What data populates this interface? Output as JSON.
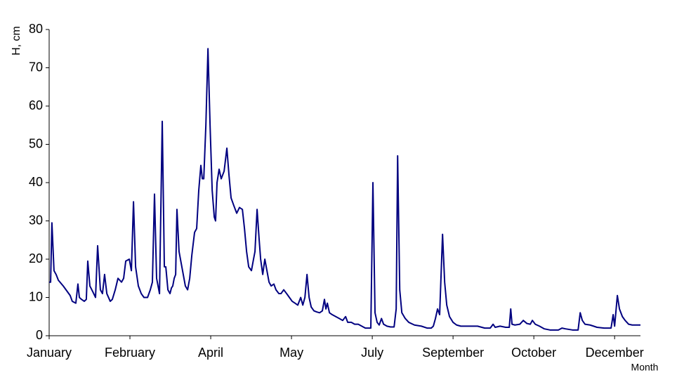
{
  "chart_data": {
    "type": "line",
    "ylabel": "H, cm",
    "xlabel": "Month",
    "xlim": [
      0,
      366
    ],
    "ylim": [
      0,
      80
    ],
    "yticks": [
      0,
      10,
      20,
      30,
      40,
      50,
      60,
      70,
      80
    ],
    "xticks": [
      {
        "value": 0,
        "label": "January"
      },
      {
        "value": 50,
        "label": "February"
      },
      {
        "value": 100,
        "label": "April"
      },
      {
        "value": 150,
        "label": "May"
      },
      {
        "value": 200,
        "label": "July"
      },
      {
        "value": 250,
        "label": "September"
      },
      {
        "value": 300,
        "label": "October"
      },
      {
        "value": 350,
        "label": "December"
      }
    ],
    "series": [
      {
        "color": "#000080",
        "x": [
          0,
          0.9,
          1.7,
          3.0,
          4.3,
          5.7,
          8.7,
          13.0,
          14.3,
          16.5,
          17.8,
          18.7,
          20.0,
          21.7,
          23.0,
          23.9,
          25.2,
          27.0,
          28.7,
          30.0,
          31.7,
          33.0,
          34.3,
          35.7,
          37.8,
          39.1,
          40.9,
          42.6,
          44.8,
          46.1,
          47.4,
          49.6,
          50.9,
          52.2,
          53.5,
          55.2,
          57.0,
          58.7,
          60.9,
          62.6,
          63.9,
          65.2,
          66.5,
          68.3,
          70.0,
          71.3,
          72.2,
          73.5,
          74.8,
          75.7,
          76.5,
          77.4,
          78.3,
          79.1,
          80.4,
          81.7,
          83.0,
          84.3,
          85.7,
          87.0,
          88.3,
          90.0,
          91.3,
          92.6,
          93.9,
          94.8,
          95.7,
          97.0,
          98.3,
          99.6,
          100.9,
          102.2,
          103.0,
          103.9,
          105.2,
          106.5,
          108.3,
          110.0,
          111.3,
          112.6,
          114.3,
          116.1,
          117.8,
          119.6,
          120.9,
          122.2,
          123.5,
          125.2,
          126.5,
          127.4,
          128.7,
          130.0,
          130.9,
          132.2,
          133.5,
          134.8,
          136.1,
          137.4,
          139.1,
          140.4,
          142.2,
          143.5,
          145.2,
          147.0,
          148.7,
          150.4,
          152.2,
          153.9,
          155.7,
          157.0,
          158.3,
          159.6,
          160.9,
          162.2,
          163.9,
          165.7,
          167.4,
          169.1,
          170.4,
          171.3,
          172.2,
          173.5,
          175.2,
          177.4,
          179.6,
          181.7,
          183.5,
          184.8,
          187.0,
          189.1,
          191.3,
          193.5,
          195.7,
          199.1,
          200.4,
          201.7,
          203.0,
          204.3,
          205.7,
          207.0,
          209.1,
          211.3,
          213.5,
          214.8,
          215.7,
          217.0,
          218.3,
          220.4,
          222.6,
          226.1,
          230.4,
          233.9,
          236.5,
          237.8,
          239.1,
          240.4,
          241.7,
          243.5,
          244.8,
          246.1,
          247.8,
          250.0,
          252.2,
          254.8,
          258.7,
          265.2,
          269.6,
          273.0,
          274.8,
          276.1,
          279.1,
          282.6,
          284.8,
          285.7,
          286.5,
          288.3,
          291.3,
          293.5,
          295.7,
          297.8,
          299.1,
          300.9,
          303.5,
          306.5,
          310.0,
          315.2,
          317.4,
          319.6,
          323.9,
          327.4,
          328.7,
          330.0,
          331.7,
          334.8,
          337.0,
          339.1,
          343.5,
          347.8,
          349.1,
          350.0,
          351.7,
          353.0,
          354.8,
          356.5,
          358.7,
          360.9,
          366
        ],
        "values": [
          14,
          14,
          29.5,
          17,
          16,
          14.5,
          13,
          10.5,
          9,
          8.5,
          13.5,
          10,
          9.5,
          9,
          9.5,
          19.5,
          13,
          11.5,
          10,
          23.5,
          12,
          11,
          16,
          11,
          9,
          9.5,
          12,
          15,
          14,
          15,
          19.5,
          20,
          17,
          35,
          18,
          13,
          11,
          10,
          10,
          12,
          14,
          37,
          15,
          11,
          56,
          18,
          18,
          12,
          11,
          12.5,
          13,
          15,
          16,
          33,
          22,
          19,
          16,
          13,
          12,
          15,
          21,
          27,
          28,
          38,
          44.5,
          41,
          41,
          55,
          75,
          55,
          38,
          31,
          30,
          40,
          43.5,
          41,
          43,
          49,
          42,
          36,
          34,
          32,
          33.5,
          33,
          28,
          22,
          18,
          17,
          20,
          22,
          33,
          25,
          20,
          16,
          20,
          17,
          14,
          13,
          13.5,
          12,
          11,
          11,
          12,
          11,
          10,
          9,
          8.5,
          8,
          10,
          8,
          10,
          16,
          10,
          7.5,
          6.5,
          6.2,
          6,
          6.5,
          9.5,
          7,
          8.5,
          6,
          5.5,
          5,
          4.5,
          4,
          5,
          3.5,
          3.5,
          3,
          3,
          2.5,
          2,
          2,
          40,
          6,
          3.5,
          2.8,
          4.5,
          3,
          2.5,
          2.3,
          2.3,
          7,
          47,
          12,
          6,
          4.5,
          3.5,
          2.8,
          2.5,
          2,
          2,
          2.5,
          4.5,
          7,
          5.5,
          26.5,
          14,
          8,
          5,
          3.5,
          2.8,
          2.5,
          2.5,
          2.5,
          2,
          2,
          3,
          2.2,
          2.5,
          2.2,
          2.2,
          7,
          3,
          2.8,
          3,
          4,
          3.2,
          3,
          4,
          3,
          2.5,
          1.8,
          1.5,
          1.5,
          2,
          1.8,
          1.5,
          1.5,
          6,
          4,
          3,
          2.8,
          2.5,
          2.2,
          2,
          2,
          5.5,
          2.5,
          10.5,
          7,
          5,
          4,
          3,
          2.8,
          2.8
        ]
      }
    ]
  }
}
